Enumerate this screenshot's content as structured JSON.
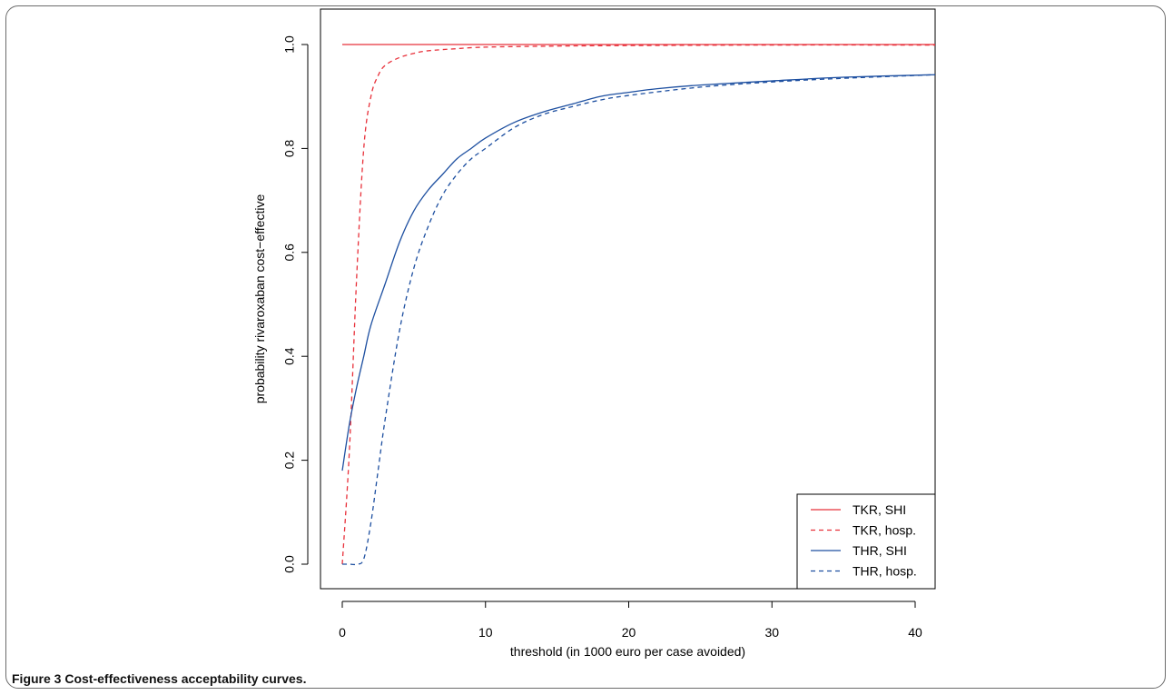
{
  "figure": {
    "label": "Figure 3",
    "caption": "Cost-effectiveness acceptability curves."
  },
  "chart_data": {
    "type": "line",
    "title": "",
    "xlabel": "threshold (in 1000 euro per case avoided)",
    "ylabel": "probability rivaroxaban cost−effective",
    "xlim": [
      0,
      41.5
    ],
    "ylim": [
      0,
      1.0
    ],
    "xticks": [
      0,
      10,
      20,
      30,
      40
    ],
    "yticks": [
      0.0,
      0.2,
      0.4,
      0.6,
      0.8,
      1.0
    ],
    "xtick_labels": [
      "0",
      "10",
      "20",
      "30",
      "40"
    ],
    "ytick_labels": [
      "0.0",
      "0.2",
      "0.4",
      "0.6",
      "0.8",
      "1.0"
    ],
    "grid": false,
    "legend_position": "bottom-right",
    "series": [
      {
        "name": "TKR, SHI",
        "color": "#e8303a",
        "style": "solid",
        "x": [
          0,
          5,
          10,
          20,
          30,
          41.5
        ],
        "y": [
          1.0,
          1.0,
          1.0,
          1.0,
          1.0,
          1.0
        ]
      },
      {
        "name": "TKR, hosp.",
        "color": "#e8303a",
        "style": "dashed",
        "x": [
          0,
          0.5,
          1.0,
          1.5,
          2.0,
          2.5,
          3.0,
          4.0,
          5.0,
          6.0,
          8.0,
          10.0,
          15.0,
          20.0,
          30.0,
          41.5
        ],
        "y": [
          0.0,
          0.22,
          0.55,
          0.8,
          0.9,
          0.94,
          0.96,
          0.975,
          0.983,
          0.988,
          0.992,
          0.995,
          0.997,
          0.998,
          0.999,
          0.999
        ]
      },
      {
        "name": "THR, SHI",
        "color": "#1d4fa0",
        "style": "solid",
        "x": [
          0,
          0.5,
          1,
          1.5,
          2,
          3,
          4,
          5,
          6,
          7,
          8,
          9,
          10,
          12,
          14,
          16,
          18,
          20,
          22,
          25,
          30,
          35,
          41.5
        ],
        "y": [
          0.18,
          0.27,
          0.34,
          0.4,
          0.46,
          0.54,
          0.62,
          0.68,
          0.72,
          0.75,
          0.78,
          0.8,
          0.82,
          0.85,
          0.87,
          0.885,
          0.9,
          0.908,
          0.915,
          0.922,
          0.93,
          0.937,
          0.942
        ]
      },
      {
        "name": "THR, hosp.",
        "color": "#1d4fa0",
        "style": "dashed",
        "x": [
          0,
          0.5,
          1.0,
          1.5,
          2.0,
          2.5,
          3.0,
          4.0,
          5.0,
          6.0,
          7.0,
          8.0,
          9.0,
          10.0,
          12.0,
          14.0,
          16.0,
          18.0,
          20.0,
          25.0,
          30.0,
          35.0,
          41.5
        ],
        "y": [
          0.0,
          0.0,
          0.0,
          0.01,
          0.08,
          0.18,
          0.28,
          0.45,
          0.57,
          0.65,
          0.71,
          0.75,
          0.78,
          0.8,
          0.84,
          0.865,
          0.88,
          0.893,
          0.902,
          0.918,
          0.928,
          0.935,
          0.942
        ]
      }
    ]
  }
}
